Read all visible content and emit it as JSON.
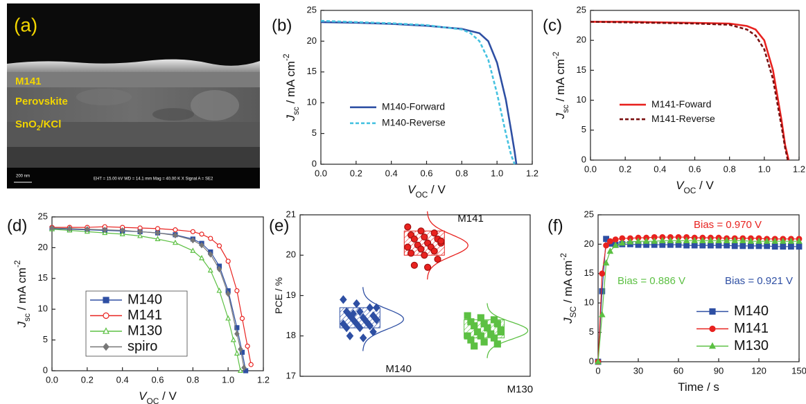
{
  "chart_data": [
    {
      "type": "image",
      "panel": "(a)",
      "layer_labels": [
        "M141",
        "Perovskite",
        [
          "SnO",
          "2",
          "/KCl"
        ]
      ],
      "scale_bar": "200 nm",
      "info": "EHT = 15.00 kV     WD = 14.1 mm     Mag =  40.00 K X  Signal A = SE2"
    },
    {
      "type": "line",
      "panel": "(b)",
      "xlabel": [
        "V",
        "OC",
        " / V"
      ],
      "ylabel": [
        "J",
        "sc",
        " / mA cm",
        "-2"
      ],
      "xlim": [
        0,
        1.2
      ],
      "ylim": [
        0,
        25
      ],
      "xticks": [
        {
          "value": 0,
          "label": "0.0"
        },
        {
          "value": 0.2,
          "label": "0.2"
        },
        {
          "value": 0.4,
          "label": "0.4"
        },
        {
          "value": 0.6,
          "label": "0.6"
        },
        {
          "value": 0.8,
          "label": "0.8"
        },
        {
          "value": 1,
          "label": "1.0"
        },
        {
          "value": 1.2,
          "label": "1.2"
        }
      ],
      "yticks": [
        0,
        5,
        10,
        15,
        20,
        25
      ],
      "legend": "center-left",
      "series": [
        {
          "name": "M140-Forward",
          "color": "#2e4fa3",
          "dash": false,
          "marker": "none",
          "x": [
            0,
            0.2,
            0.4,
            0.6,
            0.8,
            0.9,
            0.95,
            1.0,
            1.05,
            1.08,
            1.1,
            1.11
          ],
          "values": [
            23.1,
            23.0,
            22.8,
            22.5,
            22.0,
            21.3,
            20.0,
            16.5,
            10.5,
            5.5,
            2.0,
            0
          ]
        },
        {
          "name": "M140-Reverse",
          "color": "#46c2e0",
          "dash": true,
          "marker": "none",
          "x": [
            0,
            0.2,
            0.4,
            0.6,
            0.8,
            0.85,
            0.9,
            0.95,
            1.0,
            1.05,
            1.08,
            1.1
          ],
          "values": [
            23.3,
            23.1,
            22.9,
            22.6,
            21.9,
            21.3,
            20.0,
            17.0,
            11.5,
            5.0,
            1.5,
            0
          ]
        }
      ]
    },
    {
      "type": "line",
      "panel": "(c)",
      "xlabel": [
        "V",
        "OC",
        " / V"
      ],
      "ylabel": [
        "J",
        "sc",
        " / mA cm",
        "-2"
      ],
      "xlim": [
        0,
        1.2
      ],
      "ylim": [
        0,
        25
      ],
      "xticks": [
        {
          "value": 0,
          "label": "0.0"
        },
        {
          "value": 0.2,
          "label": "0.2"
        },
        {
          "value": 0.4,
          "label": "0.4"
        },
        {
          "value": 0.6,
          "label": "0.6"
        },
        {
          "value": 0.8,
          "label": "0.8"
        },
        {
          "value": 1,
          "label": "1.0"
        },
        {
          "value": 1.2,
          "label": "1.2"
        }
      ],
      "yticks": [
        0,
        5,
        10,
        15,
        20,
        25
      ],
      "legend": "center-left",
      "series": [
        {
          "name": "M141-Foward",
          "color": "#e8221f",
          "dash": false,
          "marker": "none",
          "x": [
            0,
            0.2,
            0.4,
            0.6,
            0.8,
            0.9,
            0.95,
            1.0,
            1.05,
            1.1,
            1.12,
            1.14
          ],
          "values": [
            23.1,
            23.1,
            23.0,
            22.9,
            22.8,
            22.4,
            21.8,
            20.0,
            15.0,
            6.5,
            2.5,
            0
          ]
        },
        {
          "name": "M141-Reverse",
          "color": "#7a1010",
          "dash": true,
          "marker": "none",
          "x": [
            0,
            0.2,
            0.4,
            0.6,
            0.8,
            0.9,
            0.95,
            1.0,
            1.05,
            1.1,
            1.12,
            1.135
          ],
          "values": [
            23.1,
            23.0,
            22.9,
            22.8,
            22.6,
            21.8,
            20.8,
            18.5,
            13.5,
            5.5,
            2.0,
            0
          ]
        }
      ]
    },
    {
      "type": "line",
      "panel": "(d)",
      "xlabel": [
        "V",
        "OC",
        " / V"
      ],
      "ylabel": [
        "J",
        "sc",
        " / mA cm",
        "-2"
      ],
      "xlim": [
        0,
        1.2
      ],
      "ylim": [
        0,
        25
      ],
      "xticks": [
        {
          "value": 0,
          "label": "0.0"
        },
        {
          "value": 0.2,
          "label": "0.2"
        },
        {
          "value": 0.4,
          "label": "0.4"
        },
        {
          "value": 0.6,
          "label": "0.6"
        },
        {
          "value": 0.8,
          "label": "0.8"
        },
        {
          "value": 1,
          "label": "1.0"
        },
        {
          "value": 1.2,
          "label": "1.2"
        }
      ],
      "yticks": [
        0,
        5,
        10,
        15,
        20,
        25
      ],
      "legend": "lower-left",
      "series": [
        {
          "name": "M140",
          "color": "#2e4fa3",
          "dash": false,
          "marker": "square",
          "marker_open": false,
          "x": [
            0,
            0.1,
            0.2,
            0.3,
            0.4,
            0.5,
            0.6,
            0.7,
            0.8,
            0.85,
            0.9,
            0.95,
            1.0,
            1.05,
            1.08,
            1.1
          ],
          "values": [
            23.1,
            23.0,
            22.9,
            22.8,
            22.7,
            22.6,
            22.4,
            22.1,
            21.4,
            20.7,
            19.3,
            17.0,
            13.0,
            7.0,
            3.0,
            0
          ]
        },
        {
          "name": "M141",
          "color": "#e8221f",
          "dash": false,
          "marker": "circle",
          "marker_open": true,
          "x": [
            0,
            0.1,
            0.2,
            0.3,
            0.4,
            0.5,
            0.6,
            0.7,
            0.8,
            0.85,
            0.9,
            0.95,
            1.0,
            1.05,
            1.08,
            1.11,
            1.13
          ],
          "values": [
            23.3,
            23.3,
            23.3,
            23.4,
            23.3,
            23.2,
            23.1,
            22.9,
            22.6,
            22.2,
            21.5,
            20.3,
            17.8,
            13.0,
            8.5,
            4.0,
            1.0
          ]
        },
        {
          "name": "M130",
          "color": "#5cc043",
          "dash": false,
          "marker": "triangle",
          "marker_open": true,
          "x": [
            0,
            0.1,
            0.2,
            0.3,
            0.4,
            0.5,
            0.6,
            0.7,
            0.8,
            0.85,
            0.9,
            0.95,
            1.0,
            1.03,
            1.05,
            1.07
          ],
          "values": [
            23.0,
            22.8,
            22.6,
            22.4,
            22.2,
            21.9,
            21.4,
            20.8,
            19.5,
            18.3,
            16.3,
            13.0,
            8.5,
            5.0,
            2.8,
            0
          ]
        },
        {
          "name": "spiro",
          "color": "#777777",
          "dash": false,
          "marker": "diamond",
          "marker_open": false,
          "x": [
            0,
            0.1,
            0.2,
            0.3,
            0.4,
            0.5,
            0.6,
            0.7,
            0.8,
            0.85,
            0.9,
            0.95,
            1.0,
            1.05,
            1.07,
            1.09
          ],
          "values": [
            23.2,
            23.1,
            23.0,
            22.9,
            22.8,
            22.6,
            22.4,
            22.0,
            21.2,
            20.4,
            18.9,
            16.5,
            12.5,
            6.0,
            3.5,
            0.5
          ]
        }
      ]
    },
    {
      "type": "box-scatter",
      "panel": "(e)",
      "ylabel": [
        "PCE / %"
      ],
      "ylim": [
        17,
        21
      ],
      "yticks": [
        17,
        18,
        19,
        20,
        21
      ],
      "groups": [
        {
          "name": "M140",
          "color": "#2e4fa3",
          "marker": "diamond",
          "box": [
            18.2,
            18.7
          ],
          "values": [
            18.9,
            18.8,
            18.7,
            18.6,
            18.6,
            18.5,
            18.5,
            18.45,
            18.4,
            18.4,
            18.35,
            18.3,
            18.3,
            18.25,
            18.2,
            18.2,
            18.1,
            18.0,
            17.95,
            18.7,
            18.55
          ]
        },
        {
          "name": "M141",
          "color": "#e8221f",
          "marker": "circle",
          "box": [
            20.0,
            20.6
          ],
          "values": [
            20.7,
            20.6,
            20.55,
            20.5,
            20.45,
            20.4,
            20.4,
            20.3,
            20.3,
            20.25,
            20.2,
            20.2,
            20.15,
            20.1,
            20.05,
            20.0,
            19.9,
            19.75,
            19.7,
            20.35
          ]
        },
        {
          "name": "M130",
          "color": "#5cc043",
          "marker": "square",
          "box": [
            17.95,
            18.4
          ],
          "values": [
            18.5,
            18.45,
            18.4,
            18.35,
            18.3,
            18.3,
            18.25,
            18.2,
            18.15,
            18.1,
            18.05,
            18.0,
            18.0,
            17.95,
            17.9,
            17.85,
            17.8,
            17.75,
            18.2,
            18.1
          ]
        }
      ]
    },
    {
      "type": "line",
      "panel": "(f)",
      "xlabel": [
        "Time / s"
      ],
      "ylabel": [
        "J",
        "SC",
        " / mA cm",
        "-2"
      ],
      "xlim": [
        0,
        150
      ],
      "ylim": [
        0,
        25
      ],
      "xticks": [
        0,
        30,
        60,
        90,
        120,
        150
      ],
      "yticks": [
        0,
        5,
        10,
        15,
        20,
        25
      ],
      "legend": "lower-right",
      "annotations": [
        {
          "text": "Bias = 0.970 V",
          "color": "#e8221f"
        },
        {
          "text": "Bias = 0.886 V",
          "color": "#5cc043"
        },
        {
          "text": "Bias = 0.921 V",
          "color": "#2e4fa3"
        }
      ],
      "series": [
        {
          "name": "M140",
          "color": "#2e4fa3",
          "dash": false,
          "marker": "square",
          "marker_open": false,
          "x": [
            0,
            3,
            6,
            9,
            13,
            18,
            24,
            30,
            36,
            42,
            48,
            54,
            60,
            66,
            72,
            78,
            84,
            90,
            96,
            102,
            108,
            114,
            120,
            126,
            132,
            138,
            144,
            150
          ],
          "values": [
            0,
            12,
            20.9,
            20.1,
            19.9,
            20.0,
            20.0,
            19.9,
            19.9,
            19.9,
            19.9,
            19.9,
            19.9,
            19.8,
            19.8,
            19.8,
            19.8,
            19.8,
            19.8,
            19.7,
            19.7,
            19.7,
            19.7,
            19.7,
            19.6,
            19.6,
            19.6,
            19.6
          ]
        },
        {
          "name": "M141",
          "color": "#e8221f",
          "dash": false,
          "marker": "circle",
          "marker_open": false,
          "x": [
            0,
            3,
            6,
            9,
            13,
            18,
            24,
            30,
            36,
            42,
            48,
            54,
            60,
            66,
            72,
            78,
            84,
            90,
            96,
            102,
            108,
            114,
            120,
            126,
            132,
            138,
            144,
            150
          ],
          "values": [
            0,
            15,
            19.8,
            20.5,
            20.8,
            21.0,
            21.0,
            21.1,
            21.1,
            21.2,
            21.2,
            21.2,
            21.2,
            21.2,
            21.1,
            21.1,
            21.1,
            21.1,
            21.0,
            21.0,
            21.0,
            21.0,
            21.0,
            20.9,
            20.9,
            20.9,
            20.9,
            20.9
          ]
        },
        {
          "name": "M130",
          "color": "#5cc043",
          "dash": false,
          "marker": "triangle",
          "marker_open": false,
          "x": [
            0,
            3,
            6,
            9,
            13,
            18,
            24,
            30,
            36,
            42,
            48,
            54,
            60,
            66,
            72,
            78,
            84,
            90,
            96,
            102,
            108,
            114,
            120,
            126,
            132,
            138,
            144,
            150
          ],
          "values": [
            0,
            8,
            16.8,
            18.8,
            19.8,
            20.2,
            20.4,
            20.5,
            20.5,
            20.5,
            20.6,
            20.6,
            20.6,
            20.6,
            20.6,
            20.6,
            20.6,
            20.6,
            20.6,
            20.6,
            20.6,
            20.5,
            20.5,
            20.5,
            20.5,
            20.5,
            20.5,
            20.5
          ]
        }
      ]
    }
  ]
}
